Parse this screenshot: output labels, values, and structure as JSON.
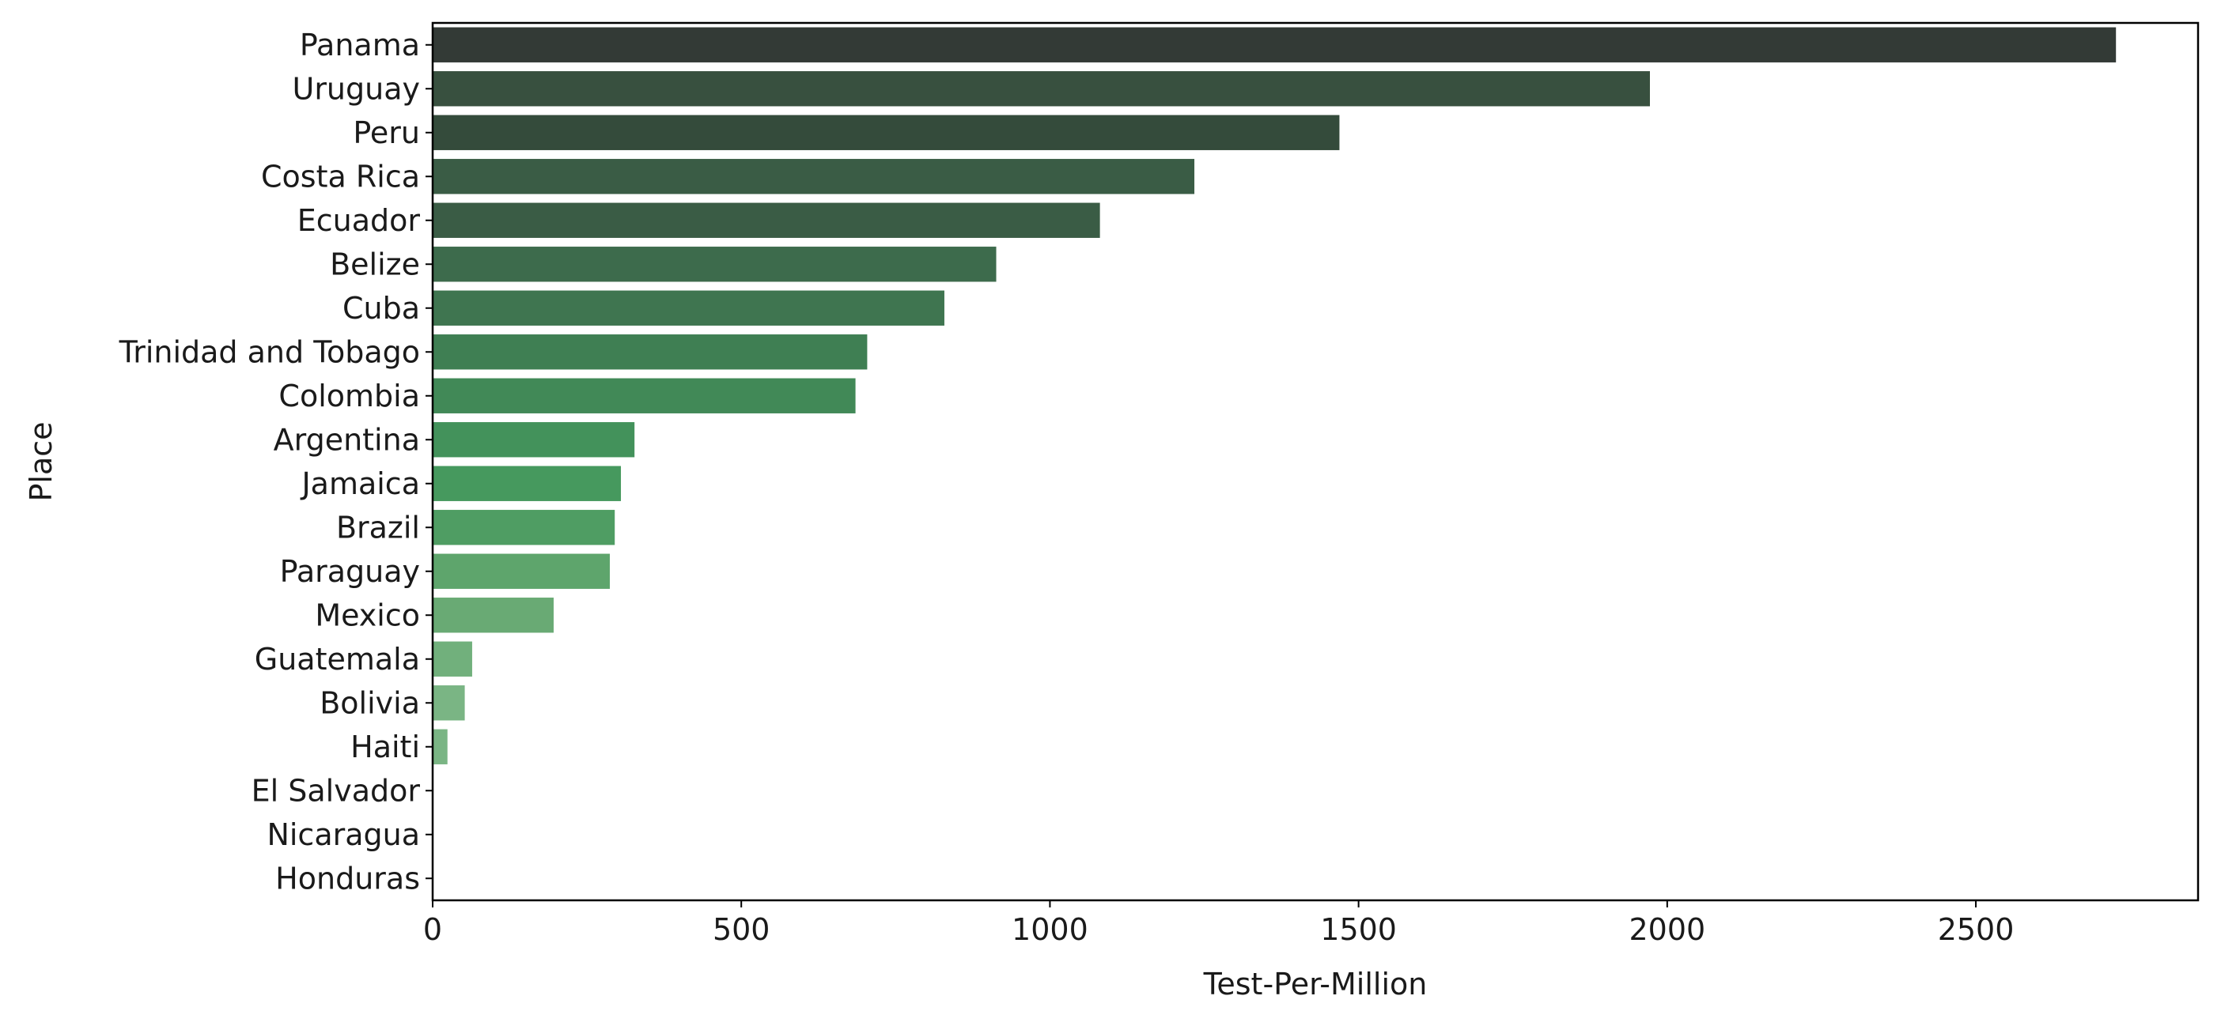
{
  "chart_data": {
    "type": "bar",
    "orientation": "horizontal",
    "xlabel": "Test-Per-Million",
    "ylabel": "Place",
    "xlim": [
      0,
      2860
    ],
    "xticks": [
      0,
      500,
      1000,
      1500,
      2000,
      2500
    ],
    "grid": false,
    "categories": [
      "Panama",
      "Uruguay",
      "Peru",
      "Costa Rica",
      "Ecuador",
      "Belize",
      "Cuba",
      "Trinidad and Tobago",
      "Colombia",
      "Argentina",
      "Jamaica",
      "Brazil",
      "Paraguay",
      "Mexico",
      "Guatemala",
      "Bolivia",
      "Haiti",
      "El Salvador",
      "Nicaragua",
      "Honduras"
    ],
    "values": [
      2727,
      1972,
      1469,
      1234,
      1081,
      913,
      829,
      704,
      685,
      327,
      305,
      295,
      287,
      196,
      64,
      52,
      24,
      0,
      0,
      0
    ],
    "colors": [
      "#333a36",
      "#38503f",
      "#344b3b",
      "#3a5c45",
      "#3a5c45",
      "#3d6b4c",
      "#3f7550",
      "#3f7f53",
      "#418957",
      "#43925b",
      "#46995e",
      "#4f9d63",
      "#5ea56c",
      "#69aa74",
      "#71b07c",
      "#7ab584",
      "#7ab584",
      "#86bc8d",
      "#86bc8d",
      "#86bc8d"
    ]
  }
}
